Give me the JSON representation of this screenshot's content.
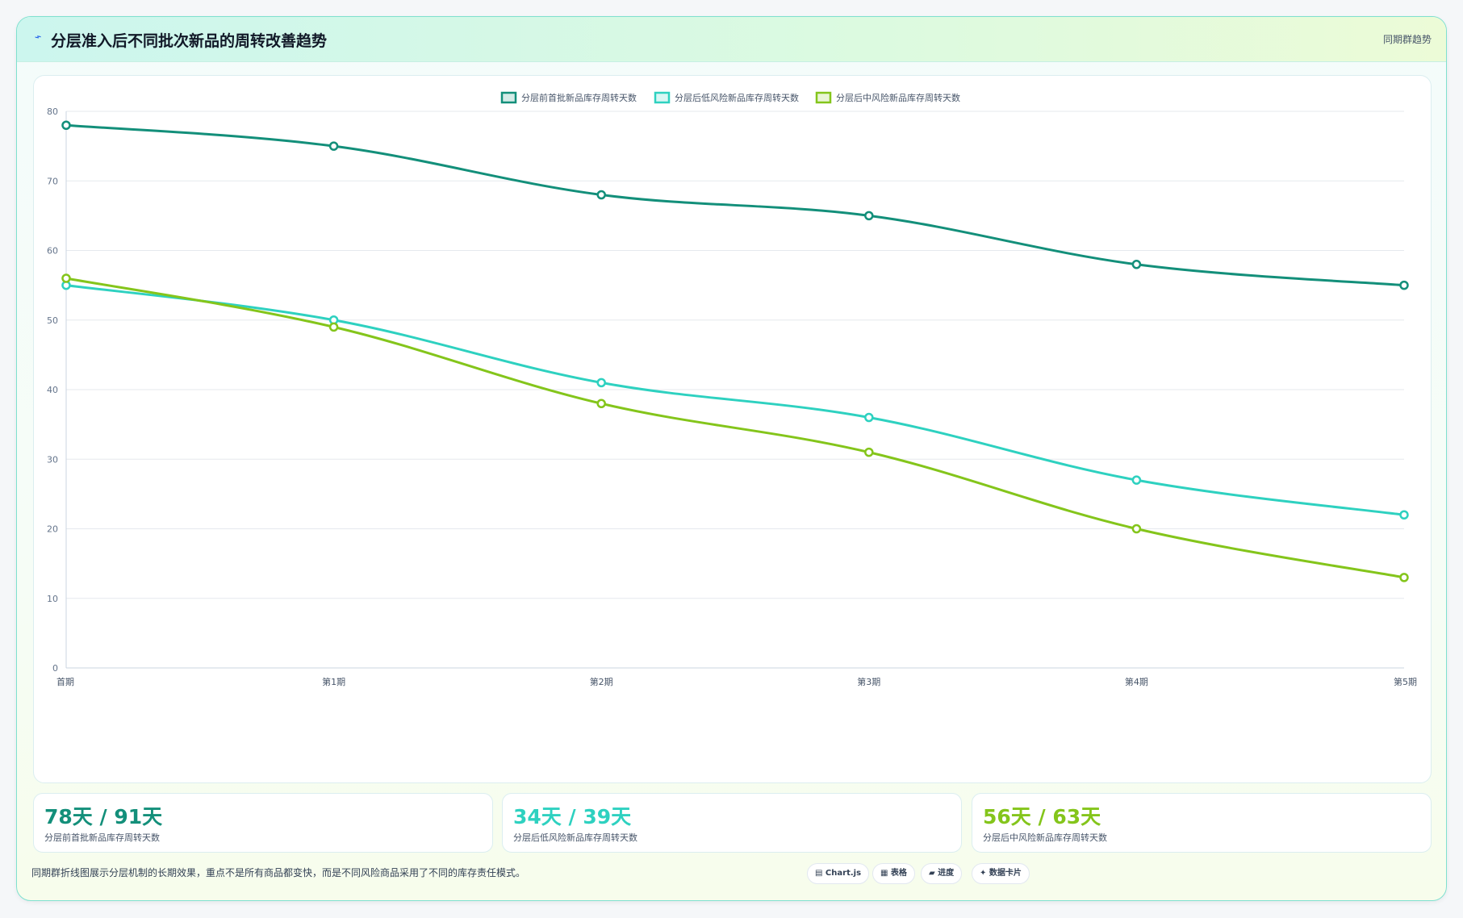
{
  "header": {
    "title": "分层准入后不同批次新品的周转改善趋势",
    "tag": "同期群趋势",
    "icon": "trend-line-icon"
  },
  "chart_data": {
    "type": "line",
    "categories": [
      "首期",
      "第1期",
      "第2期",
      "第3期",
      "第4期",
      "第5期"
    ],
    "ylim": [
      0,
      80
    ],
    "yticks": [
      0,
      10,
      20,
      30,
      40,
      50,
      60,
      70,
      80
    ],
    "grid": true,
    "legend_position": "top-center",
    "series": [
      {
        "name": "分层前首批新品库存周转天数",
        "color": "#138f7a",
        "values": [
          78,
          75,
          68,
          65,
          58,
          55
        ]
      },
      {
        "name": "分层后低风险新品库存周转天数",
        "color": "#2ed1c0",
        "values": [
          55,
          50,
          41,
          36,
          27,
          22
        ]
      },
      {
        "name": "分层后中风险新品库存周转天数",
        "color": "#84c51b",
        "values": [
          56,
          49,
          38,
          31,
          20,
          13
        ]
      }
    ]
  },
  "stats": [
    {
      "value": "78天 / 91天",
      "label": "分层前首批新品库存周转天数",
      "color": "#138f7a"
    },
    {
      "value": "34天 / 39天",
      "label": "分层后低风险新品库存周转天数",
      "color": "#2ed1c0"
    },
    {
      "value": "56天 / 63天",
      "label": "分层后中风险新品库存周转天数",
      "color": "#84c51b"
    }
  ],
  "footer": {
    "note": "同期群折线图展示分层机制的长期效果，重点不是所有商品都变快，而是不同风险商品采用了不同的库存责任模式。",
    "chips": [
      {
        "label": "▤ Chart.js"
      },
      {
        "label": "▦ 表格"
      },
      {
        "label": "▰ 进度"
      },
      {
        "label": "✦ 数据卡片"
      }
    ]
  }
}
